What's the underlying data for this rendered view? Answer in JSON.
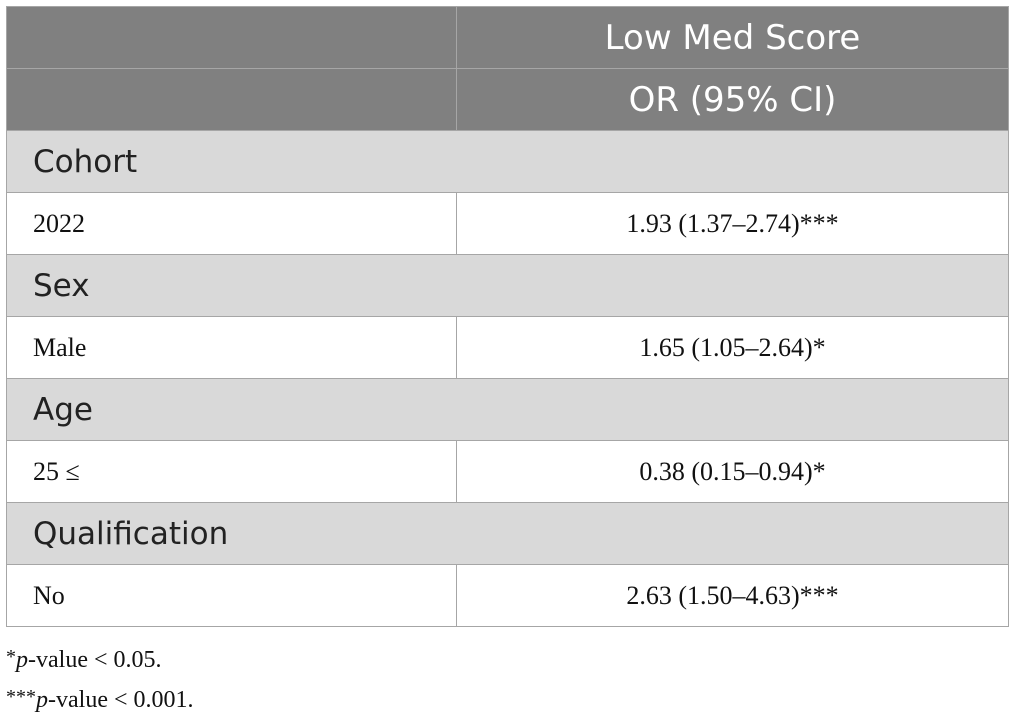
{
  "table": {
    "header": {
      "col1_row1": "",
      "col2_row1": "Low Med Score",
      "col1_row2": "",
      "col2_row2": "OR (95% CI)"
    },
    "groups": [
      {
        "title": "Cohort",
        "row": {
          "label": "2022",
          "value": "1.93 (1.37–2.74)***"
        }
      },
      {
        "title": "Sex",
        "row": {
          "label": "Male",
          "value": "1.65 (1.05–2.64)*"
        }
      },
      {
        "title": "Age",
        "row": {
          "label": "25 ≤",
          "value": "0.38 (0.15–0.94)*"
        }
      },
      {
        "title": "Qualification",
        "row": {
          "label": "No",
          "value": "2.63 (1.50–4.63)***"
        }
      }
    ]
  },
  "footnotes": [
    {
      "mark": "*",
      "p": "p",
      "text": "-value < 0.05."
    },
    {
      "mark": "***",
      "p": "p",
      "text": "-value < 0.001."
    }
  ],
  "colors": {
    "header_bg": "#808080",
    "group_bg": "#d9d9d9",
    "border": "#a6a6a6"
  }
}
